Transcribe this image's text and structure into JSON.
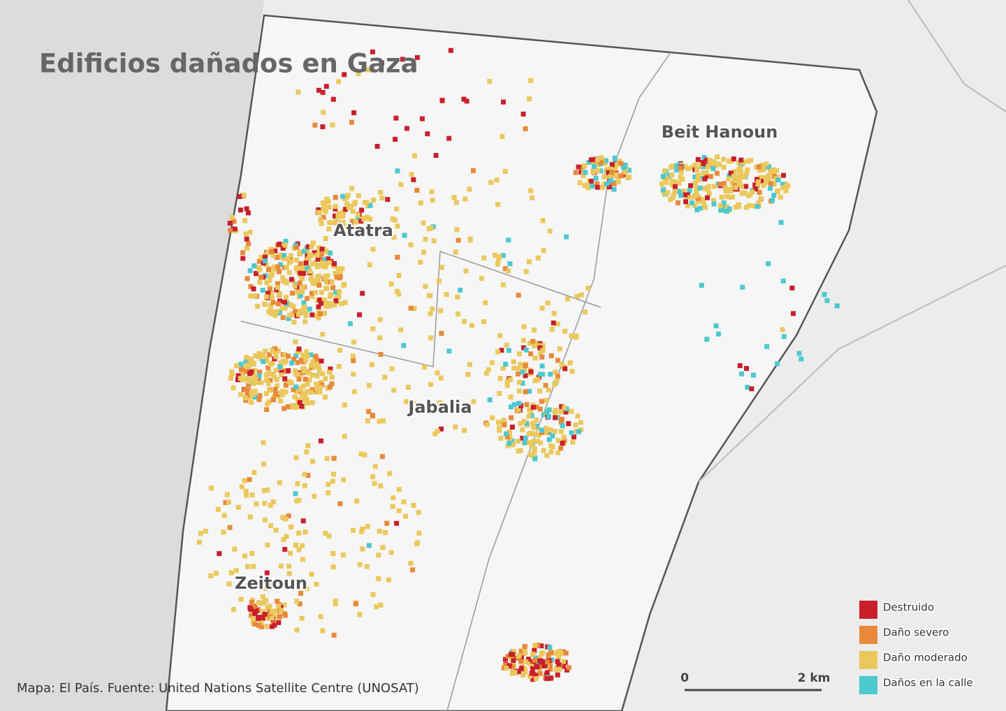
{
  "map": {
    "title": "Edificios dañados en Gaza",
    "places": [
      "Beit Hanoun",
      "Atatra",
      "Jabalia",
      "Zeitoun"
    ],
    "legend": [
      {
        "label": "Destruido",
        "color": "#c91f2b"
      },
      {
        "label": "Daño severo",
        "color": "#e8893a"
      },
      {
        "label": "Daño moderado",
        "color": "#ebc85c"
      },
      {
        "label": "Daños en la calle",
        "color": "#4cc8cf"
      }
    ],
    "scale": {
      "labels": [
        "0",
        "2 km"
      ]
    },
    "source": "Mapa: El País. Fuente: United Nations Satellite Centre (UNOSAT)"
  }
}
